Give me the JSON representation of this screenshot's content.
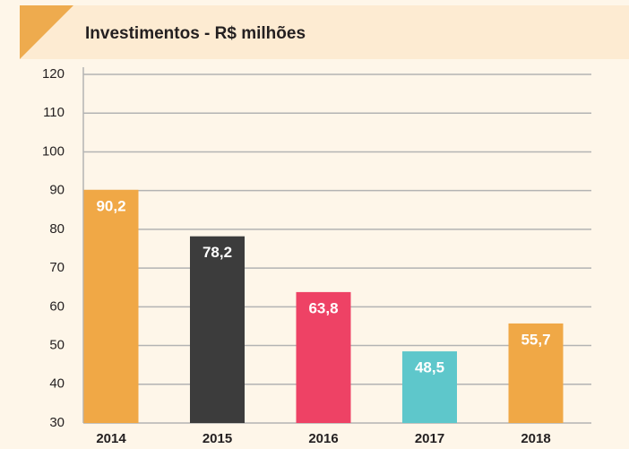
{
  "chart_data": {
    "type": "bar",
    "title": "Investimentos - R$ milhões",
    "categories": [
      "2014",
      "2015",
      "2016",
      "2017",
      "2018"
    ],
    "values": [
      90.2,
      78.2,
      63.8,
      48.5,
      55.7
    ],
    "value_labels": [
      "90,2",
      "78,2",
      "63,8",
      "48,5",
      "55,7"
    ],
    "colors": [
      "#f0a846",
      "#3c3c3c",
      "#ee4265",
      "#5ec7cb",
      "#f0a846"
    ],
    "ylim": [
      30,
      120
    ],
    "yticks": [
      30,
      40,
      50,
      60,
      70,
      80,
      90,
      100,
      110,
      120
    ],
    "grid": true
  }
}
